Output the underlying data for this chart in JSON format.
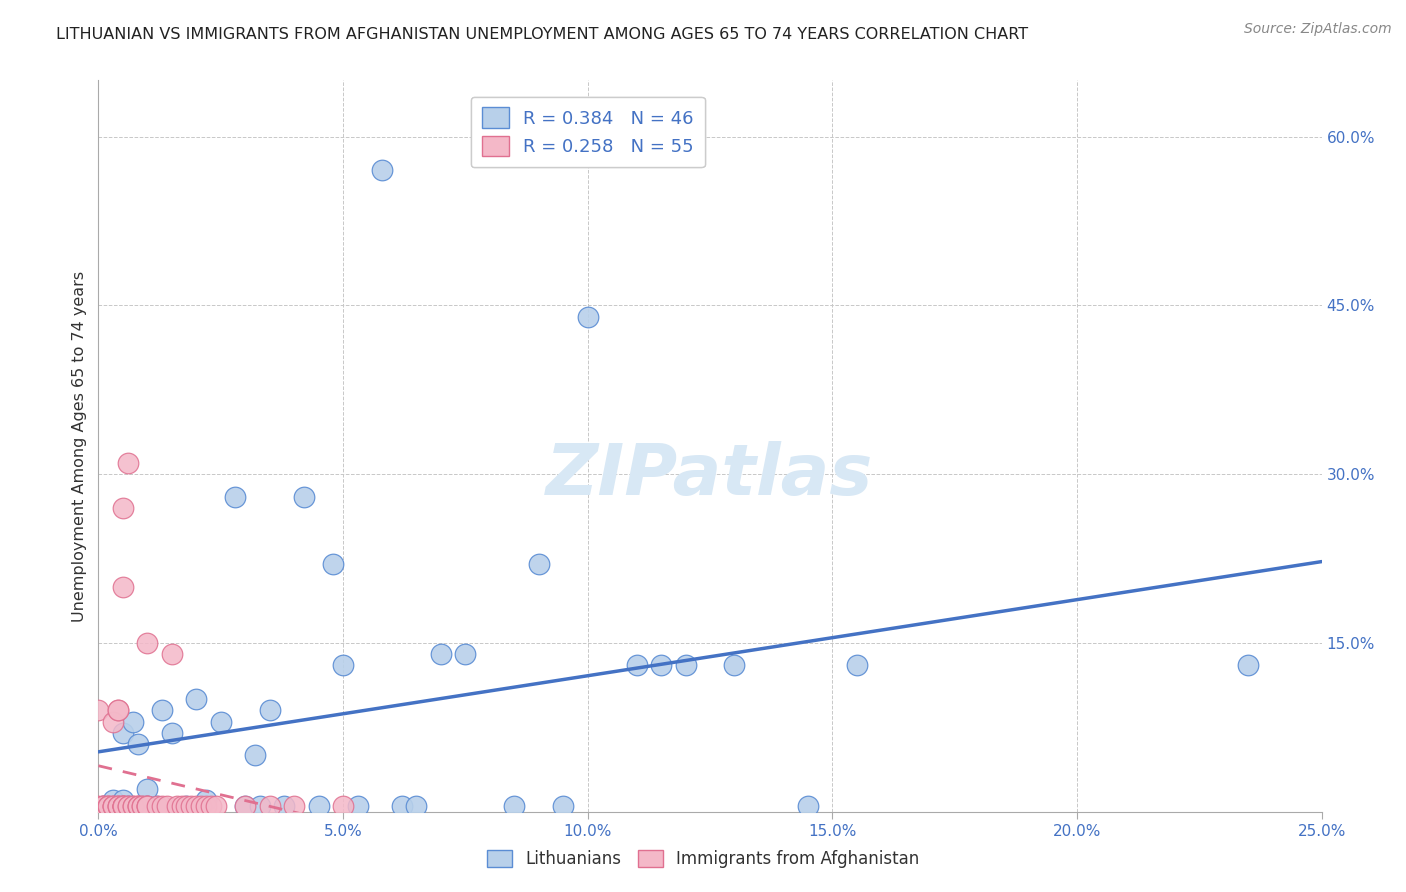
{
  "title": "LITHUANIAN VS IMMIGRANTS FROM AFGHANISTAN UNEMPLOYMENT AMONG AGES 65 TO 74 YEARS CORRELATION CHART",
  "source": "Source: ZipAtlas.com",
  "ylabel": "Unemployment Among Ages 65 to 74 years",
  "xlim": [
    0.0,
    0.25
  ],
  "ylim": [
    0.0,
    0.65
  ],
  "xticks": [
    0.0,
    0.05,
    0.1,
    0.15,
    0.2,
    0.25
  ],
  "yticks": [
    0.0,
    0.15,
    0.3,
    0.45,
    0.6
  ],
  "legend_blue_R": "R = 0.384",
  "legend_blue_N": "N = 46",
  "legend_pink_R": "R = 0.258",
  "legend_pink_N": "N = 55",
  "blue_fill": "#b8d0ea",
  "pink_fill": "#f4b8c8",
  "blue_edge": "#5b8dd4",
  "pink_edge": "#e07090",
  "blue_line": "#4472c4",
  "pink_line": "#e07090",
  "watermark_color": "#d8e8f5",
  "blue_x": [
    0.001,
    0.002,
    0.003,
    0.004,
    0.005,
    0.005,
    0.006,
    0.007,
    0.008,
    0.009,
    0.01,
    0.01,
    0.012,
    0.013,
    0.015,
    0.018,
    0.02,
    0.022,
    0.025,
    0.028,
    0.03,
    0.032,
    0.033,
    0.035,
    0.038,
    0.042,
    0.045,
    0.048,
    0.05,
    0.053,
    0.058,
    0.062,
    0.065,
    0.07,
    0.075,
    0.085,
    0.09,
    0.095,
    0.1,
    0.11,
    0.115,
    0.12,
    0.13,
    0.145,
    0.155,
    0.235
  ],
  "blue_y": [
    0.005,
    0.005,
    0.01,
    0.005,
    0.01,
    0.07,
    0.005,
    0.08,
    0.06,
    0.005,
    0.02,
    0.005,
    0.005,
    0.09,
    0.07,
    0.005,
    0.1,
    0.01,
    0.08,
    0.28,
    0.005,
    0.05,
    0.005,
    0.09,
    0.005,
    0.28,
    0.005,
    0.22,
    0.13,
    0.005,
    0.57,
    0.005,
    0.005,
    0.14,
    0.14,
    0.005,
    0.22,
    0.005,
    0.44,
    0.13,
    0.13,
    0.13,
    0.13,
    0.005,
    0.13,
    0.13
  ],
  "pink_x": [
    0.0,
    0.0,
    0.001,
    0.001,
    0.001,
    0.002,
    0.002,
    0.002,
    0.003,
    0.003,
    0.003,
    0.003,
    0.004,
    0.004,
    0.004,
    0.004,
    0.004,
    0.005,
    0.005,
    0.005,
    0.005,
    0.005,
    0.005,
    0.005,
    0.006,
    0.006,
    0.006,
    0.007,
    0.007,
    0.008,
    0.008,
    0.008,
    0.009,
    0.009,
    0.01,
    0.01,
    0.01,
    0.01,
    0.012,
    0.013,
    0.014,
    0.015,
    0.016,
    0.017,
    0.018,
    0.019,
    0.02,
    0.021,
    0.022,
    0.023,
    0.024,
    0.03,
    0.035,
    0.04,
    0.05
  ],
  "pink_y": [
    0.005,
    0.09,
    0.005,
    0.005,
    0.005,
    0.005,
    0.005,
    0.005,
    0.005,
    0.005,
    0.08,
    0.005,
    0.005,
    0.09,
    0.09,
    0.005,
    0.005,
    0.005,
    0.005,
    0.005,
    0.005,
    0.2,
    0.005,
    0.27,
    0.005,
    0.31,
    0.005,
    0.005,
    0.005,
    0.005,
    0.005,
    0.005,
    0.005,
    0.005,
    0.005,
    0.005,
    0.15,
    0.005,
    0.005,
    0.005,
    0.005,
    0.14,
    0.005,
    0.005,
    0.005,
    0.005,
    0.005,
    0.005,
    0.005,
    0.005,
    0.005,
    0.005,
    0.005,
    0.005,
    0.005
  ]
}
